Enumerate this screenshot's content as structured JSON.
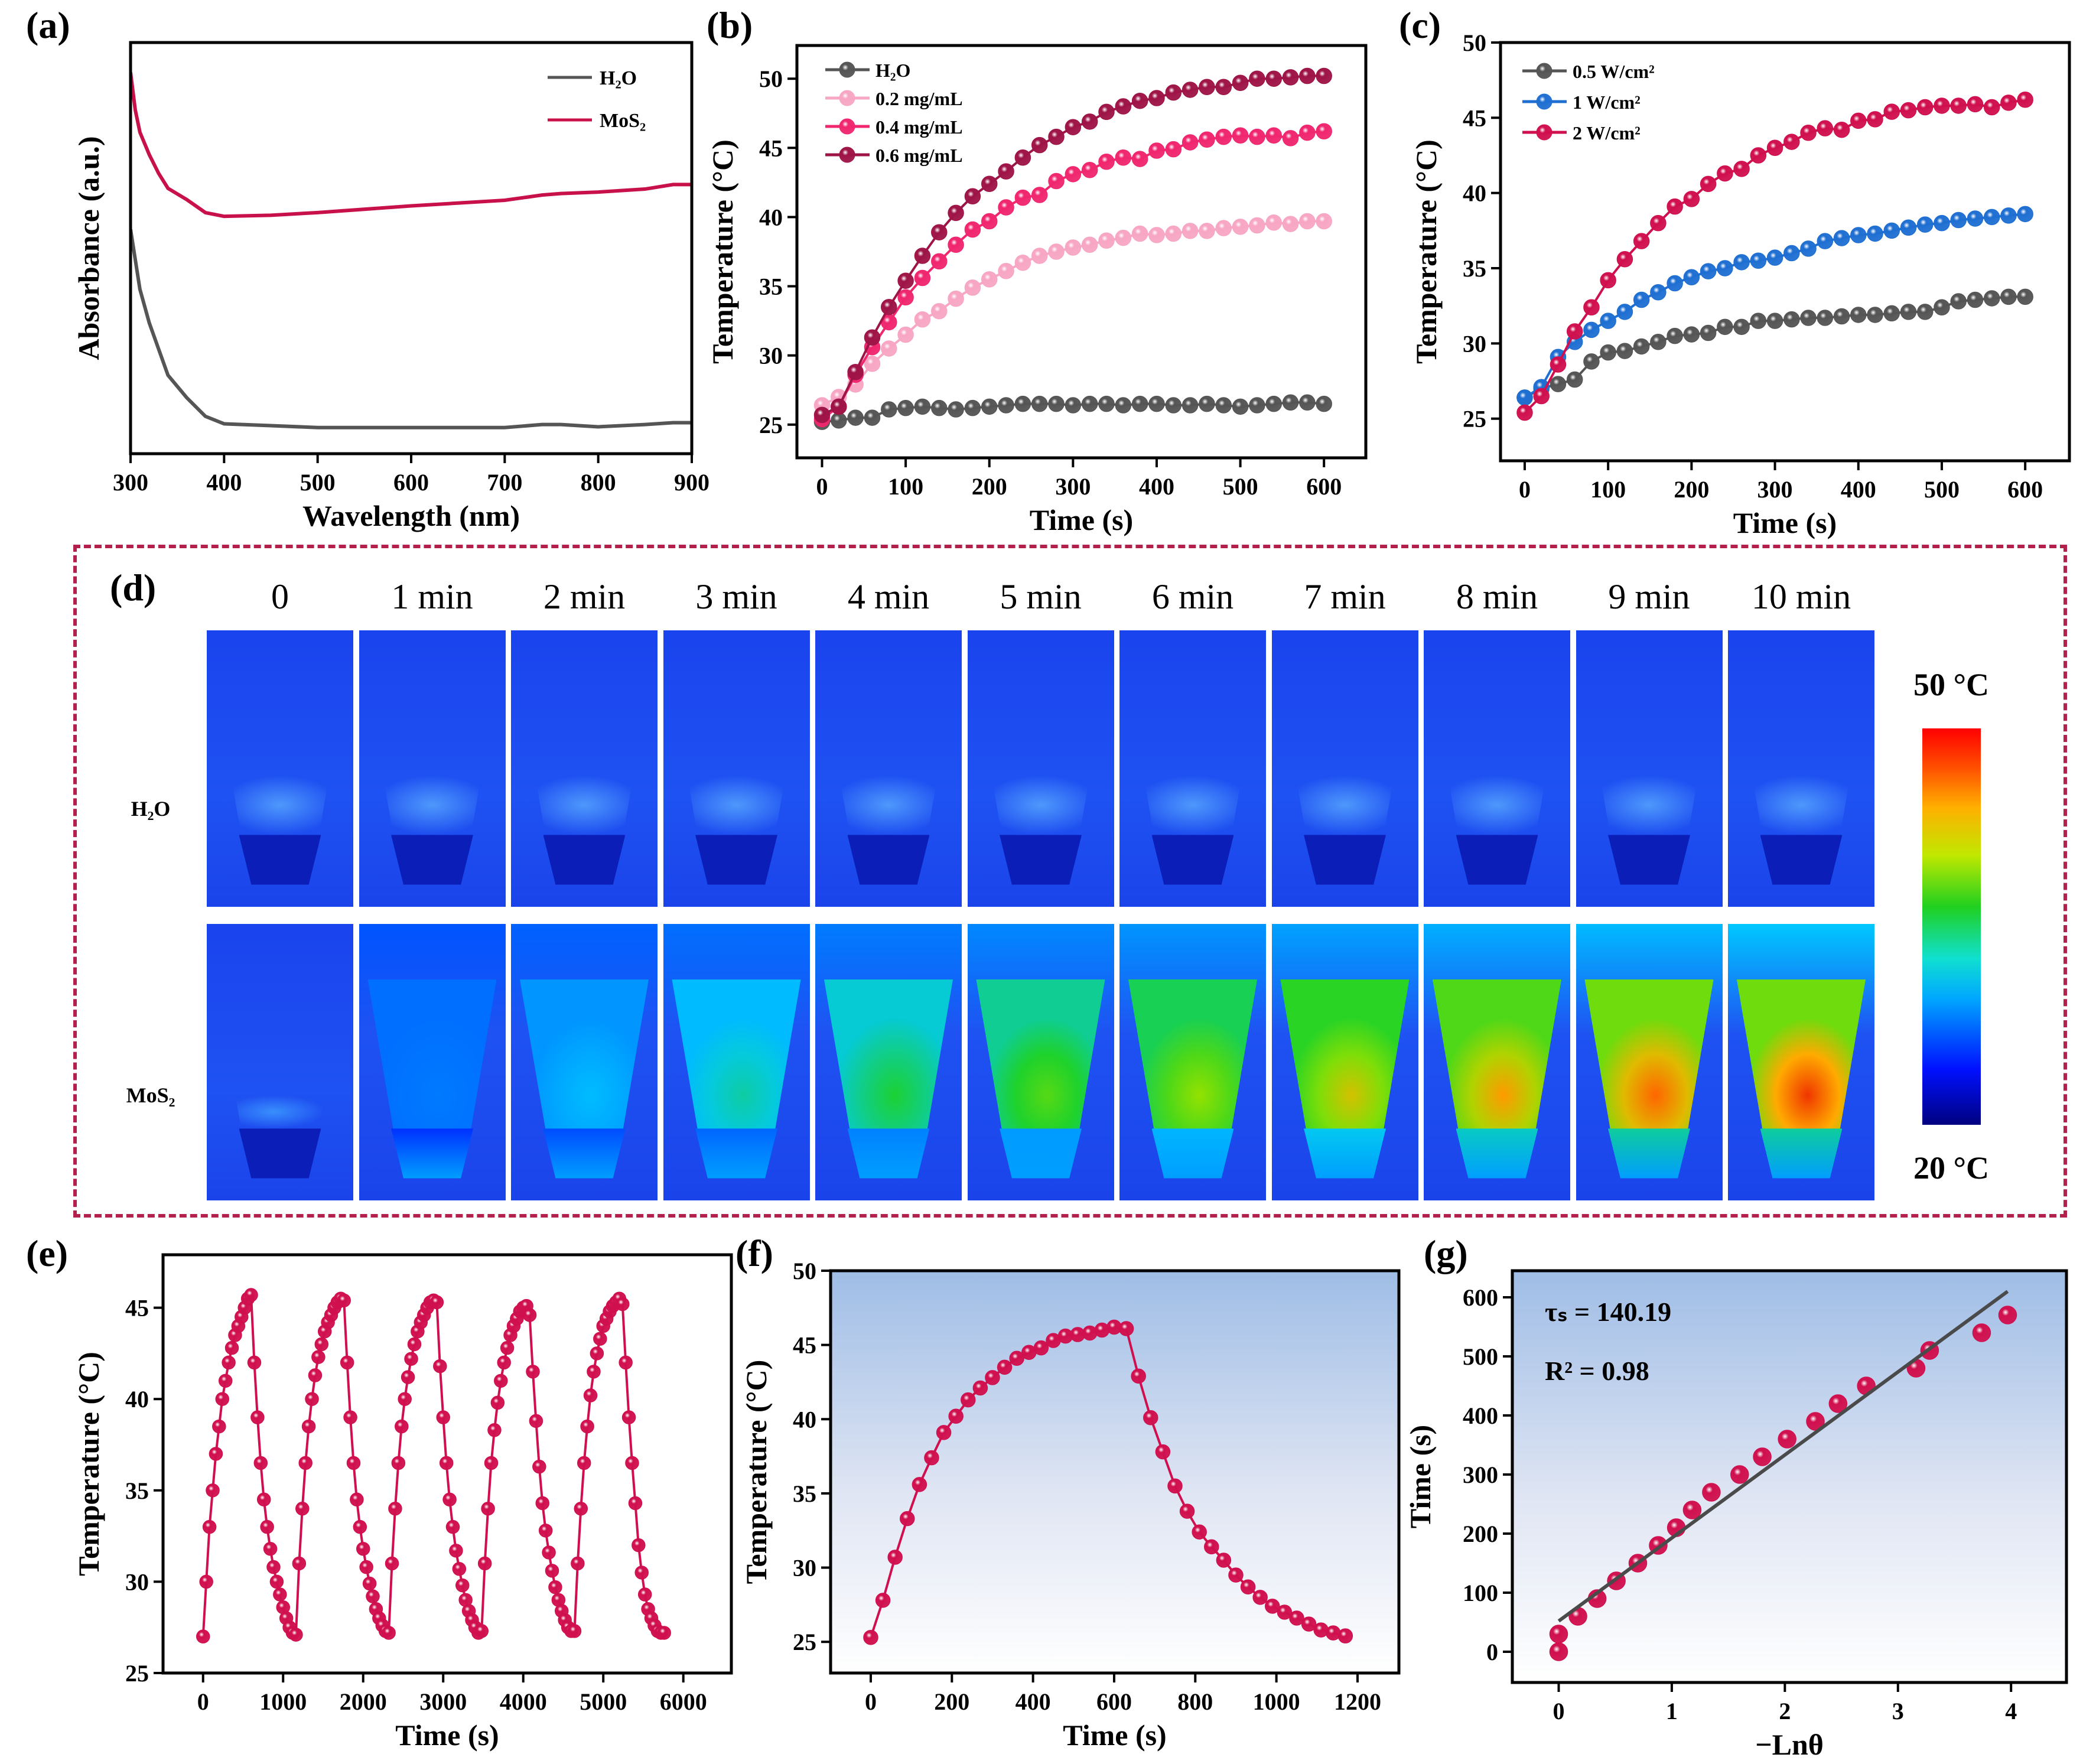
{
  "panel_labels": {
    "a": "(a)",
    "b": "(b)",
    "c": "(c)",
    "d": "(d)",
    "e": "(e)",
    "f": "(f)",
    "g": "(g)"
  },
  "panel_d": {
    "columns": [
      "0",
      "1 min",
      "2 min",
      "3 min",
      "4 min",
      "5 min",
      "6 min",
      "7 min",
      "8 min",
      "9 min",
      "10 min"
    ],
    "rows": [
      "H₂O",
      "MoS₂"
    ],
    "colorbar": {
      "max_label": "50 °C",
      "min_label": "20 °C"
    }
  },
  "colors": {
    "h2o": "#555555",
    "mos2": "#c8104a",
    "p02": "#f7a6c4",
    "p04": "#f0266e",
    "p06": "#9e1446",
    "w1": "#1f6fd2",
    "w2": "#d0104e",
    "frame": "#b3204c"
  },
  "chart_data": [
    {
      "id": "a",
      "type": "line",
      "xlabel": "Wavelength (nm)",
      "ylabel": "Absorbance (a.u.)",
      "xlim": [
        300,
        900
      ],
      "ylim": [
        -0.02,
        1.08
      ],
      "xticks": [
        300,
        400,
        500,
        600,
        700,
        800,
        900
      ],
      "yticks": [],
      "legend": "top-right",
      "series": [
        {
          "name": "H₂O",
          "color": "#555555",
          "mode": "line",
          "x": [
            300,
            305,
            310,
            320,
            330,
            340,
            360,
            380,
            400,
            450,
            500,
            600,
            700,
            740,
            760,
            800,
            850,
            880,
            900
          ],
          "y": [
            0.58,
            0.5,
            0.42,
            0.33,
            0.26,
            0.19,
            0.13,
            0.08,
            0.06,
            0.055,
            0.05,
            0.05,
            0.05,
            0.058,
            0.058,
            0.052,
            0.058,
            0.063,
            0.063
          ]
        },
        {
          "name": "MoS₂",
          "color": "#c8104a",
          "mode": "line",
          "x": [
            300,
            305,
            310,
            320,
            330,
            340,
            360,
            380,
            400,
            450,
            500,
            600,
            700,
            740,
            760,
            800,
            850,
            880,
            900
          ],
          "y": [
            1.0,
            0.9,
            0.84,
            0.78,
            0.73,
            0.69,
            0.66,
            0.625,
            0.615,
            0.618,
            0.625,
            0.643,
            0.658,
            0.672,
            0.676,
            0.68,
            0.688,
            0.7,
            0.7
          ]
        }
      ]
    },
    {
      "id": "b",
      "type": "line",
      "xlabel": "Time (s)",
      "ylabel": "Temperature (°C)",
      "xlim": [
        -30,
        650
      ],
      "ylim": [
        22.6,
        52.4
      ],
      "xticks": [
        0,
        100,
        200,
        300,
        400,
        500,
        600
      ],
      "yticks": [
        25,
        30,
        35,
        40,
        45,
        50
      ],
      "legend": "top-left",
      "series": [
        {
          "name": "H₂O",
          "color": "#555555",
          "mode": "line+markers",
          "x_start": 0,
          "x_step": 20,
          "y": [
            25.2,
            25.3,
            25.5,
            25.5,
            26.1,
            26.2,
            26.3,
            26.2,
            26.1,
            26.2,
            26.3,
            26.4,
            26.5,
            26.5,
            26.5,
            26.4,
            26.5,
            26.5,
            26.4,
            26.5,
            26.5,
            26.4,
            26.4,
            26.5,
            26.4,
            26.3,
            26.4,
            26.5,
            26.6,
            26.6,
            26.5
          ]
        },
        {
          "name": "0.2 mg/mL",
          "color": "#f7a6c4",
          "mode": "line+markers",
          "x_start": 0,
          "x_step": 20,
          "y": [
            26.4,
            27.0,
            27.9,
            29.4,
            30.5,
            31.5,
            32.6,
            33.2,
            34.1,
            34.9,
            35.5,
            36.1,
            36.7,
            37.2,
            37.5,
            37.8,
            38.0,
            38.3,
            38.5,
            38.8,
            38.7,
            38.8,
            39.0,
            39.0,
            39.2,
            39.3,
            39.4,
            39.6,
            39.5,
            39.7,
            39.7
          ]
        },
        {
          "name": "0.4 mg/mL",
          "color": "#f0266e",
          "mode": "line+markers",
          "x_start": 0,
          "x_step": 20,
          "y": [
            25.4,
            26.3,
            28.6,
            30.6,
            32.4,
            34.2,
            35.6,
            36.8,
            38.0,
            39.1,
            39.7,
            40.7,
            41.4,
            41.6,
            42.6,
            43.1,
            43.4,
            44.0,
            44.3,
            44.2,
            44.8,
            44.9,
            45.4,
            45.6,
            45.8,
            45.9,
            45.8,
            45.9,
            45.7,
            46.1,
            46.2
          ]
        },
        {
          "name": "0.6 mg/mL",
          "color": "#9e1446",
          "mode": "line+markers",
          "x_start": 0,
          "x_step": 20,
          "y": [
            25.7,
            26.3,
            28.8,
            31.3,
            33.5,
            35.4,
            37.2,
            38.9,
            40.3,
            41.5,
            42.4,
            43.3,
            44.3,
            45.2,
            45.8,
            46.5,
            46.9,
            47.6,
            48.0,
            48.4,
            48.6,
            49.0,
            49.2,
            49.4,
            49.4,
            49.7,
            50.0,
            50.0,
            50.1,
            50.2,
            50.2
          ]
        }
      ]
    },
    {
      "id": "c",
      "type": "line",
      "xlabel": "Time (s)",
      "ylabel": "Temperature (°C)",
      "xlim": [
        -29,
        653
      ],
      "ylim": [
        22.2,
        50
      ],
      "xticks": [
        0,
        100,
        200,
        300,
        400,
        500,
        600
      ],
      "yticks": [
        25,
        30,
        35,
        40,
        45,
        50
      ],
      "legend": "top-left",
      "series": [
        {
          "name": "0.5 W/cm²",
          "color": "#555555",
          "mode": "line+markers",
          "x_start": 0,
          "x_step": 20,
          "y": [
            26.4,
            27.0,
            27.3,
            27.6,
            28.8,
            29.4,
            29.5,
            29.8,
            30.1,
            30.5,
            30.6,
            30.7,
            31.1,
            31.1,
            31.5,
            31.5,
            31.6,
            31.7,
            31.7,
            31.8,
            31.9,
            31.9,
            32.0,
            32.1,
            32.1,
            32.4,
            32.8,
            32.9,
            33.0,
            33.1,
            33.1
          ]
        },
        {
          "name": "1 W/cm²",
          "color": "#1f6fd2",
          "mode": "line+markers",
          "x_start": 0,
          "x_step": 20,
          "y": [
            26.4,
            27.1,
            29.1,
            30.1,
            30.9,
            31.5,
            32.1,
            32.9,
            33.4,
            34.0,
            34.4,
            34.8,
            35.0,
            35.4,
            35.5,
            35.7,
            36.0,
            36.3,
            36.8,
            37.0,
            37.2,
            37.3,
            37.5,
            37.7,
            37.9,
            38.0,
            38.2,
            38.3,
            38.4,
            38.5,
            38.6
          ]
        },
        {
          "name": "2 W/cm²",
          "color": "#d0104e",
          "mode": "line+markers",
          "x_start": 0,
          "x_step": 20,
          "y": [
            25.4,
            26.5,
            28.6,
            30.8,
            32.4,
            34.2,
            35.6,
            36.8,
            38.0,
            39.1,
            39.6,
            40.6,
            41.3,
            41.6,
            42.5,
            43.0,
            43.4,
            44.0,
            44.3,
            44.2,
            44.8,
            44.9,
            45.4,
            45.5,
            45.7,
            45.8,
            45.8,
            45.9,
            45.7,
            46.0,
            46.2
          ]
        }
      ]
    },
    {
      "id": "e",
      "type": "line",
      "xlabel": "Time (s)",
      "ylabel": "Temperature (°C)",
      "xlim": [
        -500,
        6600
      ],
      "ylim": [
        25,
        47.9
      ],
      "xticks": [
        0,
        1000,
        2000,
        3000,
        4000,
        5000,
        6000
      ],
      "yticks": [
        25,
        30,
        35,
        40,
        45
      ],
      "series": [
        {
          "color": "#d0104e",
          "mode": "line+markers",
          "x_start": 0,
          "x_step": 40,
          "y": [
            27,
            30,
            33,
            35,
            37,
            38.5,
            40,
            41,
            42,
            42.8,
            43.5,
            44,
            44.5,
            45,
            45.5,
            45.7,
            42,
            39,
            36.5,
            34.5,
            33,
            31.8,
            30.8,
            30,
            29.3,
            28.6,
            28,
            27.5,
            27.2,
            27.1,
            31,
            34,
            36.5,
            38.5,
            40,
            41.3,
            42.3,
            43,
            43.7,
            44.2,
            44.6,
            45,
            45.3,
            45.5,
            45.4,
            42,
            39,
            36.5,
            34.5,
            33,
            31.8,
            30.8,
            29.9,
            29.2,
            28.5,
            28,
            27.6,
            27.3,
            27.2,
            31,
            34,
            36.5,
            38.5,
            40,
            41.2,
            42.2,
            43,
            43.7,
            44.2,
            44.6,
            45,
            45.3,
            45.4,
            45.3,
            41.8,
            39,
            36.5,
            34.5,
            33,
            31.7,
            30.7,
            29.8,
            29,
            28.4,
            27.9,
            27.5,
            27.2,
            27.3,
            31,
            34,
            36.5,
            38.3,
            39.8,
            41,
            42,
            42.8,
            43.5,
            44,
            44.4,
            44.8,
            45,
            45.1,
            44.6,
            41.5,
            38.8,
            36.3,
            34.3,
            32.8,
            31.6,
            30.6,
            29.7,
            29,
            28.4,
            27.9,
            27.5,
            27.3,
            27.3,
            31,
            34,
            36.5,
            38.5,
            40.2,
            41.5,
            42.5,
            43.3,
            44,
            44.4,
            44.8,
            45.1,
            45.3,
            45.5,
            45.2,
            42,
            39,
            36.5,
            34.3,
            32,
            30.5,
            29.3,
            28.5,
            28,
            27.6,
            27.3,
            27.2,
            27.2
          ]
        }
      ]
    },
    {
      "id": "f",
      "type": "line",
      "xlabel": "Time (s)",
      "ylabel": "Temperature (°C)",
      "xlim": [
        -99,
        1302
      ],
      "ylim": [
        22.9,
        50
      ],
      "background": "gradient-blue-top",
      "xticks": [
        0,
        200,
        400,
        600,
        800,
        1000,
        1200
      ],
      "yticks": [
        25,
        30,
        35,
        40,
        45,
        50
      ],
      "series": [
        {
          "color": "#d0104e",
          "mode": "line+markers",
          "x_start": 0,
          "x_step": 30,
          "y": [
            25.3,
            27.8,
            30.7,
            33.3,
            35.6,
            37.4,
            39.1,
            40.2,
            41.3,
            42.1,
            42.8,
            43.5,
            44.1,
            44.5,
            44.8,
            45.3,
            45.6,
            45.7,
            45.8,
            46.0,
            46.2,
            46.1,
            42.9,
            40.1,
            37.8,
            35.5,
            33.8,
            32.4,
            31.4,
            30.5,
            29.5,
            28.7,
            28.0,
            27.4,
            27.0,
            26.6,
            26.2,
            25.8,
            25.6,
            25.4
          ]
        }
      ]
    },
    {
      "id": "g",
      "type": "scatter",
      "xlabel": "−Lnθ",
      "ylabel": "Time (s)",
      "xlim": [
        -0.41,
        4.49
      ],
      "ylim": [
        -52,
        645
      ],
      "background": "gradient-blue-top",
      "xticks": [
        0,
        1,
        2,
        3,
        4
      ],
      "yticks": [
        0,
        100,
        200,
        300,
        400,
        500,
        600
      ],
      "annotations": [
        "τₛ = 140.19",
        "R² = 0.98"
      ],
      "series": [
        {
          "color": "#d0104e",
          "mode": "markers",
          "x": [
            0,
            0,
            0.17,
            0.34,
            0.51,
            0.7,
            0.88,
            1.04,
            1.18,
            1.35,
            1.6,
            1.8,
            2.02,
            2.27,
            2.47,
            2.72,
            3.16,
            3.28,
            3.74,
            3.97
          ],
          "y": [
            0,
            30,
            60,
            90,
            120,
            150,
            180,
            210,
            240,
            270,
            300,
            330,
            360,
            390,
            420,
            450,
            480,
            510,
            540,
            570
          ]
        },
        {
          "color": "#4a4a4a",
          "mode": "line",
          "x": [
            0,
            3.97
          ],
          "y": [
            52,
            610
          ]
        }
      ]
    }
  ]
}
